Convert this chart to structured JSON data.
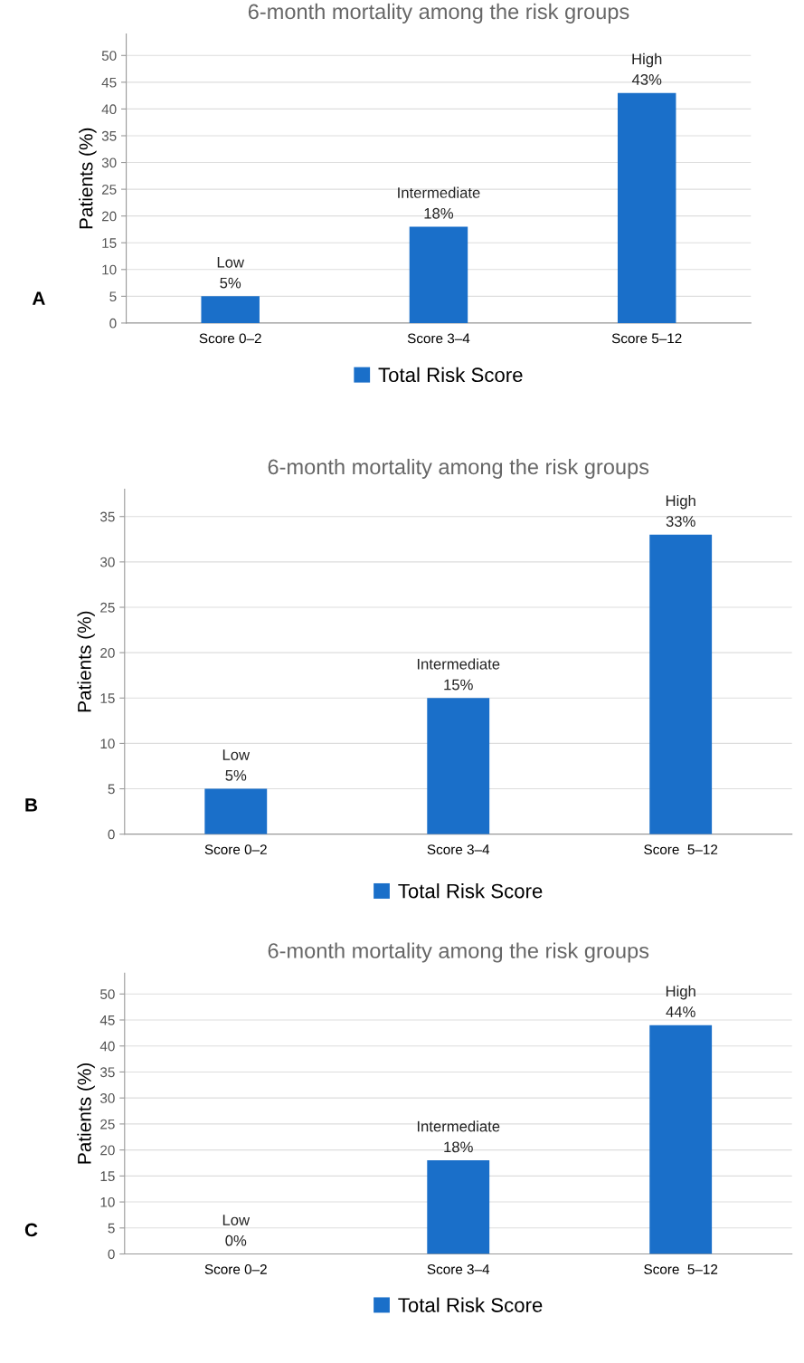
{
  "chart_data": [
    {
      "type": "bar",
      "title": "6-month mortality among the risk groups",
      "ylabel": "Patients (%)",
      "categories": [
        "Score 0–2",
        "Score 3–4",
        "Score 5–12"
      ],
      "series": [
        {
          "name": "Total Risk Score",
          "color": "#1a6fc9",
          "values": [
            5,
            18,
            43
          ],
          "value_labels": [
            "Low\n5%",
            "Intermediate\n18%",
            "High\n43%"
          ]
        }
      ],
      "ylim": [
        0,
        54
      ],
      "yticks": [
        0,
        5,
        10,
        15,
        20,
        25,
        30,
        35,
        40,
        45,
        50
      ],
      "grid": "y",
      "legend": "bottom",
      "annotations": [
        "A"
      ]
    },
    {
      "type": "bar",
      "title": "6-month mortality among the risk groups",
      "ylabel": "Patients (%)",
      "categories": [
        "Score 0–2",
        "Score 3–4",
        "Score  5–12"
      ],
      "series": [
        {
          "name": "Total Risk Score",
          "color": "#1a6fc9",
          "values": [
            5,
            15,
            33
          ],
          "value_labels": [
            "Low\n5%",
            "Intermediate\n15%",
            "High\n33%"
          ]
        }
      ],
      "ylim": [
        0,
        38
      ],
      "yticks": [
        0,
        5,
        10,
        15,
        20,
        25,
        30,
        35
      ],
      "grid": "y",
      "legend": "bottom",
      "annotations": [
        "B"
      ]
    },
    {
      "type": "bar",
      "title": "6-month mortality among the risk groups",
      "ylabel": "Patients (%)",
      "categories": [
        "Score 0–2",
        "Score 3–4",
        "Score  5–12"
      ],
      "series": [
        {
          "name": "Total Risk Score",
          "color": "#1a6fc9",
          "values": [
            0,
            18,
            44
          ],
          "value_labels": [
            "Low\n0%",
            "Intermediate\n18%",
            "High\n44%"
          ]
        }
      ],
      "ylim": [
        0,
        54
      ],
      "yticks": [
        0,
        5,
        10,
        15,
        20,
        25,
        30,
        35,
        40,
        45,
        50
      ],
      "grid": "y",
      "legend": "bottom",
      "annotations": [
        "C"
      ]
    }
  ]
}
